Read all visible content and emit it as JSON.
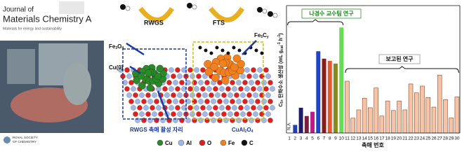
{
  "cover": {
    "journal": [
      "Journal of",
      "Materials Chemistry A"
    ],
    "subtitle": "Materials for energy and sustainability",
    "publisher": [
      "ROYAL SOCIETY",
      "OF CHEMISTRY"
    ]
  },
  "diagram": {
    "labels": {
      "rwgs": "RWGS",
      "fts": "FTS",
      "cu0": "Cu(0)",
      "site": "RWGS 촉매 활성 자리"
    },
    "fe3o4": [
      "Fe",
      "3",
      "O",
      "4"
    ],
    "fe5cy": [
      "Fe",
      "5",
      "C",
      "y"
    ],
    "cual2o4": [
      "CuAl",
      "2",
      "O",
      "4"
    ],
    "legend": [
      "Cu",
      "Al",
      "O",
      "Fe",
      "C"
    ]
  },
  "chart_data": {
    "type": "bar",
    "ylabel": [
      "C",
      "5+",
      " 탄화수소 생산성 (mL g",
      "cat",
      "-1",
      " h",
      "-1",
      ")"
    ],
    "xlabel": "촉매 번호",
    "categories": [
      "1",
      "2",
      "3",
      "4",
      "5",
      "6",
      "7",
      "8",
      "9",
      "10",
      "11",
      "12",
      "13",
      "14",
      "15",
      "16",
      "17",
      "18",
      "19",
      "20",
      "21",
      "22",
      "23",
      "24",
      "25",
      "26",
      "27",
      "28",
      "29",
      "30"
    ],
    "values": [
      null,
      38,
      119,
      80,
      100,
      385,
      350,
      340,
      327,
      497,
      244,
      70,
      109,
      164,
      119,
      212,
      80,
      151,
      106,
      151,
      109,
      231,
      189,
      221,
      167,
      122,
      273,
      157,
      71,
      170
    ],
    "colors": [
      "#f5c4a8",
      "#2340b0",
      "#1c1c6b",
      "#7a1f3d",
      "#c2188a",
      "#1e44c8",
      "#8b1a1a",
      "#e8572a",
      "#8a8a1c",
      "#66dd55",
      "#f5c4a8",
      "#f5c4a8",
      "#f5c4a8",
      "#f5c4a8",
      "#f5c4a8",
      "#f5c4a8",
      "#f5c4a8",
      "#f5c4a8",
      "#f5c4a8",
      "#f5c4a8",
      "#f5c4a8",
      "#f5c4a8",
      "#f5c4a8",
      "#f5c4a8",
      "#f5c4a8",
      "#f5c4a8",
      "#f5c4a8",
      "#f5c4a8",
      "#f5c4a8",
      "#f5c4a8"
    ],
    "ylim": [
      0,
      600
    ],
    "annotations": [
      "N.A.",
      "나경수 교수팀 연구",
      "보고된 연구"
    ]
  }
}
